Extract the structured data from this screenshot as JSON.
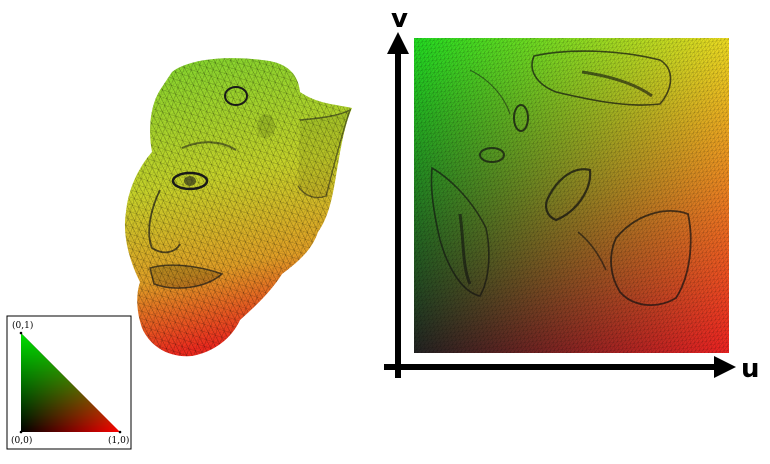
{
  "legend": {
    "corner_top": "(0,1)",
    "corner_origin": "(0,0)",
    "corner_right": "(1,0)",
    "colors": {
      "top": "#00e000",
      "right": "#e00000",
      "origin": "#000000"
    }
  },
  "uv_plot": {
    "axis_v_label": "v",
    "axis_u_label": "u",
    "colors": {
      "top_left": "#22dd22",
      "top_right": "#eedd22",
      "bottom_left": "#222222",
      "bottom_right": "#ee2222"
    }
  },
  "face_mesh": {
    "gradient_top": "#8fd432",
    "gradient_bottom": "#ee2a1e"
  }
}
